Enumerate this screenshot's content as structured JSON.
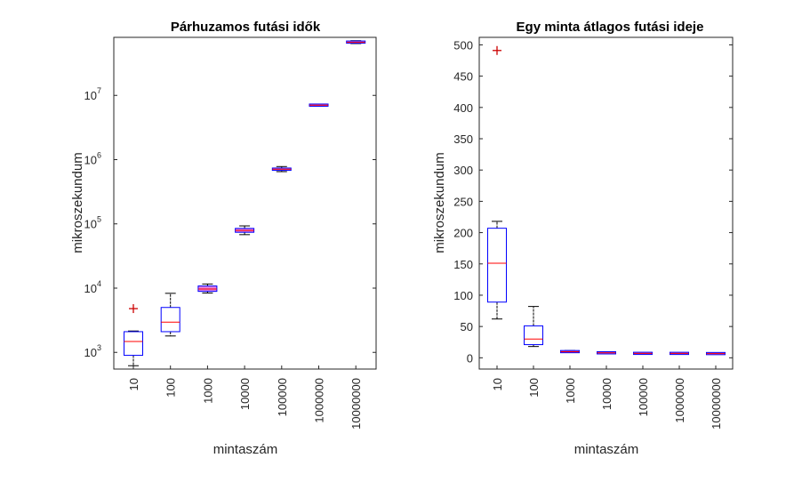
{
  "chart_data": [
    {
      "type": "box",
      "title": "Párhuzamos futási idők",
      "xlabel": "mintaszám",
      "ylabel": "mikroszekundum",
      "yscale": "log",
      "ylim": [
        550,
        80000000
      ],
      "yticks": [
        {
          "value": 1000,
          "base": "10",
          "exp": "3"
        },
        {
          "value": 10000,
          "base": "10",
          "exp": "4"
        },
        {
          "value": 100000,
          "base": "10",
          "exp": "5"
        },
        {
          "value": 1000000,
          "base": "10",
          "exp": "6"
        },
        {
          "value": 10000000,
          "base": "10",
          "exp": "7"
        }
      ],
      "categories": [
        "10",
        "100",
        "1000",
        "10000",
        "100000",
        "1000000",
        "10000000"
      ],
      "boxes": [
        {
          "low": 620,
          "q1": 900,
          "median": 1480,
          "q3": 2100,
          "high": 2150,
          "outliers": [
            4800
          ]
        },
        {
          "low": 1800,
          "q1": 2100,
          "median": 2950,
          "q3": 5000,
          "high": 8300,
          "outliers": []
        },
        {
          "low": 8400,
          "q1": 8900,
          "median": 9700,
          "q3": 10800,
          "high": 11600,
          "outliers": []
        },
        {
          "low": 68000,
          "q1": 74000,
          "median": 79000,
          "q3": 85000,
          "high": 93000,
          "outliers": []
        },
        {
          "low": 650000,
          "q1": 680000,
          "median": 710000,
          "q3": 740000,
          "high": 780000,
          "outliers": []
        },
        {
          "low": 6800000,
          "q1": 6950000,
          "median": 7050000,
          "q3": 7150000,
          "high": 7300000,
          "outliers": []
        },
        {
          "low": 64000000,
          "q1": 65500000,
          "median": 67000000,
          "q3": 69500000,
          "high": 71000000,
          "outliers": []
        }
      ]
    },
    {
      "type": "box",
      "title": "Egy minta átlagos futási ideje",
      "xlabel": "mintaszám",
      "ylabel": "mikroszekundum",
      "yscale": "linear",
      "ylim": [
        -18,
        512
      ],
      "yticks": [
        {
          "value": 0,
          "label": "0"
        },
        {
          "value": 50,
          "label": "50"
        },
        {
          "value": 100,
          "label": "100"
        },
        {
          "value": 150,
          "label": "150"
        },
        {
          "value": 200,
          "label": "200"
        },
        {
          "value": 250,
          "label": "250"
        },
        {
          "value": 300,
          "label": "300"
        },
        {
          "value": 350,
          "label": "350"
        },
        {
          "value": 400,
          "label": "400"
        },
        {
          "value": 450,
          "label": "450"
        },
        {
          "value": 500,
          "label": "500"
        }
      ],
      "categories": [
        "10",
        "100",
        "1000",
        "10000",
        "100000",
        "1000000",
        "10000000"
      ],
      "boxes": [
        {
          "low": 62,
          "q1": 89,
          "median": 151,
          "q3": 207,
          "high": 218,
          "outliers": [
            491
          ]
        },
        {
          "low": 18,
          "q1": 21,
          "median": 30,
          "q3": 51,
          "high": 82,
          "outliers": []
        },
        {
          "low": 8.4,
          "q1": 8.9,
          "median": 9.7,
          "q3": 10.8,
          "high": 11.6,
          "outliers": []
        },
        {
          "low": 6.8,
          "q1": 7.4,
          "median": 7.9,
          "q3": 8.5,
          "high": 9.3,
          "outliers": []
        },
        {
          "low": 6.5,
          "q1": 6.8,
          "median": 7.1,
          "q3": 7.4,
          "high": 7.8,
          "outliers": []
        },
        {
          "low": 6.8,
          "q1": 6.95,
          "median": 7.05,
          "q3": 7.15,
          "high": 7.3,
          "outliers": []
        },
        {
          "low": 6.4,
          "q1": 6.55,
          "median": 6.7,
          "q3": 6.95,
          "high": 7.1,
          "outliers": []
        }
      ]
    }
  ],
  "colors": {
    "box": "#0000ff",
    "median": "#ff0000",
    "whisker": "#000000",
    "outlier": "#cc0000",
    "compressed_box_fill": "#e080e0",
    "axis": "#262626"
  }
}
